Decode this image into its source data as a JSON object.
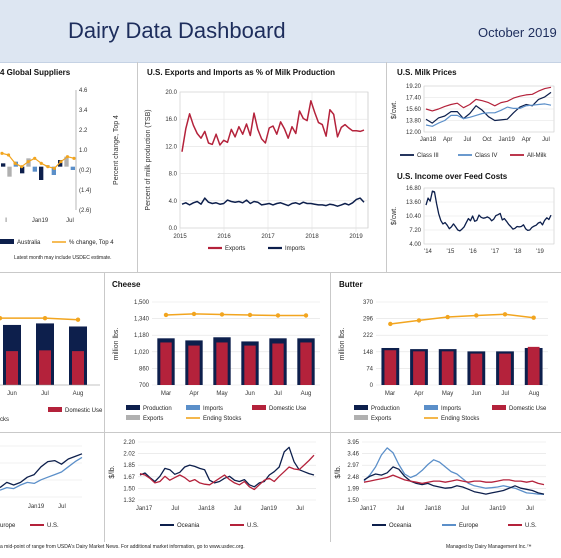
{
  "header": {
    "title": "Dairy Data Dashboard",
    "date": "October 2019"
  },
  "footer": {
    "source": "a mid-point of range from USDA's Dairy Market News.  For additional market information, go to www.usdec.org.",
    "managed": "Managed by Dairy Management Inc.™",
    "note": "Latest month may include USDEC estimate."
  },
  "colors": {
    "navy": "#0d1f4c",
    "red": "#b4223b",
    "lightblue": "#5b8fc9",
    "gold": "#f2a51f",
    "grey": "#b0b0b0"
  },
  "chart_data": [
    {
      "id": "global-suppliers",
      "type": "bar",
      "title": "4 Global Suppliers",
      "ylabel": "Percent change, Top 4",
      "yticks_right": [
        "4.6",
        "3.4",
        "2.2",
        "1.0",
        "(0.2)",
        "(1.4)",
        "(2.6)"
      ],
      "xticks": [
        "l",
        "Jan19",
        "Jul"
      ],
      "legend": [
        "Australia",
        "% change, Top 4"
      ],
      "values": [
        0.2,
        -0.6,
        0.3,
        -0.4,
        0.5,
        -0.3,
        -0.8,
        0.1,
        -0.5,
        0.4,
        0.6,
        -0.2
      ],
      "line": [
        0.8,
        0.7,
        0.2,
        0.0,
        0.3,
        0.5,
        0.2,
        0.0,
        -0.1,
        0.3,
        0.6,
        0.5
      ]
    },
    {
      "id": "us-exports-imports",
      "type": "line",
      "title": "U.S. Exports and Imports as % of Milk Production",
      "ylabel": "Percent of milk production (TSB)",
      "ylim": [
        0,
        20
      ],
      "yticks": [
        "20.0",
        "16.0",
        "12.0",
        "8.0",
        "4.0",
        "0.0"
      ],
      "xticks": [
        "2015",
        "2016",
        "2017",
        "2018",
        "2019"
      ],
      "series": [
        {
          "name": "Exports",
          "values": [
            11.2,
            14.6,
            16.8,
            15.1,
            13.9,
            13.2,
            14.2,
            12.5,
            12.3,
            13.8,
            12.2,
            12.9,
            12.6,
            14.5,
            13.4,
            14.9,
            13.8,
            15.3,
            13.6,
            16.9,
            14.5,
            13.1,
            12.5,
            14.7,
            15.0,
            13.8,
            15.6,
            14.6,
            13.2,
            14.9,
            13.9,
            17.2,
            16.1,
            15.8,
            18.7,
            17.0,
            15.5,
            15.2,
            13.5,
            17.4,
            16.7,
            13.4,
            14.8,
            15.2,
            14.7,
            14.3,
            14.3,
            14.2,
            14.4
          ]
        },
        {
          "name": "Imports",
          "values": [
            3.5,
            3.7,
            3.4,
            3.7,
            3.9,
            3.5,
            4.4,
            3.8,
            3.6,
            3.7,
            3.5,
            3.6,
            4.1,
            3.9,
            3.8,
            3.9,
            3.7,
            4.1,
            3.6,
            3.9,
            3.8,
            3.4,
            3.5,
            3.6,
            3.4,
            3.6,
            3.7,
            3.5,
            3.3,
            3.6,
            3.7,
            3.5,
            3.8,
            3.6,
            3.6,
            3.5,
            3.4,
            3.4,
            3.3,
            3.5,
            3.4,
            3.2,
            3.4,
            3.6,
            3.4,
            3.7,
            4.2,
            4.4,
            3.8
          ]
        }
      ]
    },
    {
      "id": "us-milk-prices",
      "type": "line",
      "title": "U.S. Milk Prices",
      "ylabel": "$/cwt.",
      "ylim": [
        12,
        19.2
      ],
      "yticks": [
        "19.20",
        "17.40",
        "15.60",
        "13.80",
        "12.00"
      ],
      "xticks": [
        "Jan18",
        "Apr",
        "Jul",
        "Oct",
        "Jan19",
        "Apr",
        "Jul"
      ],
      "series": [
        {
          "name": "Class III",
          "values": [
            14.0,
            13.4,
            14.2,
            14.5,
            15.2,
            15.2,
            14.1,
            14.9,
            16.1,
            15.4,
            14.4,
            13.8,
            13.9,
            14.0,
            15.0,
            15.9,
            16.3,
            16.1,
            17.1,
            17.5,
            18.2
          ]
        },
        {
          "name": "Class IV",
          "values": [
            13.1,
            12.9,
            13.4,
            13.8,
            14.6,
            14.6,
            14.1,
            14.3,
            14.6,
            14.9,
            15.0,
            15.0,
            15.4,
            15.9,
            15.7,
            15.7,
            16.1,
            16.2,
            16.3,
            16.4,
            16.2
          ]
        },
        {
          "name": "All-Milk",
          "values": [
            15.6,
            15.3,
            15.6,
            16.0,
            16.3,
            16.5,
            15.8,
            16.3,
            17.1,
            16.9,
            16.6,
            16.1,
            16.6,
            16.8,
            17.3,
            17.6,
            17.8,
            17.9,
            18.4,
            18.8,
            19.0
          ]
        }
      ]
    },
    {
      "id": "income-over-feed",
      "type": "line",
      "title": "U.S. Income over Feed Costs",
      "ylabel": "$/cwt.",
      "ylim": [
        4,
        16.8
      ],
      "yticks": [
        "16.80",
        "13.60",
        "10.40",
        "7.20",
        "4.00"
      ],
      "xticks": [
        "'14",
        "'15",
        "'16",
        "'17",
        "'18",
        "'19"
      ],
      "values": [
        12.9,
        14.5,
        13.8,
        16.1,
        15.9,
        13.2,
        10.9,
        9.4,
        8.6,
        8.9,
        8.3,
        7.5,
        7.9,
        8.6,
        7.9,
        7.2,
        7.0,
        7.4,
        7.9,
        8.9,
        9.8,
        9.3,
        10.4,
        9.2,
        9.4,
        10.6,
        10.1,
        9.9,
        10.0,
        10.2,
        9.9,
        9.3,
        9.7,
        10.5,
        10.7,
        11.0,
        9.5,
        9.8,
        9.2,
        8.5,
        8.0,
        7.4,
        7.6,
        8.0,
        7.9,
        8.0,
        8.4,
        7.5,
        7.1,
        7.2,
        7.8,
        8.1,
        8.3,
        8.8,
        9.0,
        8.4,
        9.4,
        10.0,
        9.6,
        10.6
      ]
    },
    {
      "id": "panel-left",
      "type": "bar",
      "xticks": [
        "Jun",
        "Jul",
        "Aug"
      ],
      "legend": [
        "Domestic Use",
        "cks"
      ],
      "bars": [
        {
          "total": 0.78,
          "red": 0.44
        },
        {
          "total": 0.8,
          "red": 0.45
        },
        {
          "total": 0.76,
          "red": 0.44
        }
      ],
      "line": [
        0.92,
        0.92,
        0.9
      ]
    },
    {
      "id": "cheese",
      "type": "bar",
      "title": "Cheese",
      "ylabel": "million lbs.",
      "ylim": [
        700,
        1500
      ],
      "yticks": [
        "1,500",
        "1,340",
        "1,180",
        "1,020",
        "860",
        "700"
      ],
      "xticks": [
        "Mar",
        "Apr",
        "May",
        "Jun",
        "Jul",
        "Aug"
      ],
      "production": [
        1150,
        1130,
        1160,
        1120,
        1150,
        1150
      ],
      "domestic_use": [
        1110,
        1080,
        1110,
        1080,
        1100,
        1110
      ],
      "ending_stocks": [
        1375,
        1385,
        1380,
        1375,
        1370,
        1370
      ],
      "legend": [
        "Production",
        "Imports",
        "Domestic Use",
        "Exports",
        "Ending Stocks"
      ]
    },
    {
      "id": "butter",
      "type": "bar",
      "title": "Butter",
      "ylabel": "million lbs.",
      "ylim": [
        0,
        370
      ],
      "yticks": [
        "370",
        "296",
        "222",
        "148",
        "74",
        "0"
      ],
      "xticks": [
        "Mar",
        "Apr",
        "May",
        "Jun",
        "Jul",
        "Aug"
      ],
      "production": [
        165,
        160,
        160,
        150,
        150,
        165
      ],
      "domestic_use": [
        155,
        150,
        150,
        140,
        140,
        170
      ],
      "ending_stocks": [
        272,
        288,
        303,
        310,
        315,
        300
      ],
      "legend": [
        "Production",
        "Imports",
        "Domestic Use",
        "Exports",
        "Ending Stocks"
      ]
    },
    {
      "id": "prices-left",
      "type": "line",
      "xticks": [
        "Jan19",
        "Jul"
      ],
      "legend": [
        "urope",
        "U.S."
      ],
      "series": [
        {
          "name": "urope",
          "values": [
            0.2,
            0.3,
            0.25,
            0.3,
            0.4,
            0.45,
            0.6,
            0.7,
            0.72,
            0.65,
            0.75,
            0.8,
            0.85
          ]
        },
        {
          "name": "U.S.",
          "values": [
            0.15,
            0.2,
            0.18,
            0.25,
            0.3,
            0.28,
            0.35,
            0.4,
            0.45,
            0.5,
            0.6,
            0.7,
            0.78
          ]
        }
      ]
    },
    {
      "id": "prices-middle",
      "type": "line",
      "ylabel": "$/lb.",
      "ylim": [
        1.32,
        2.2
      ],
      "yticks": [
        "2.20",
        "2.02",
        "1.85",
        "1.67",
        "1.50",
        "1.32"
      ],
      "xticks": [
        "Jan17",
        "Jul",
        "Jan18",
        "Jul",
        "Jan19",
        "Jul"
      ],
      "series": [
        {
          "name": "Oceania",
          "values": [
            1.7,
            1.73,
            1.66,
            1.6,
            1.68,
            1.8,
            1.78,
            1.71,
            1.74,
            1.82,
            1.85,
            1.83,
            1.8,
            1.78,
            1.62,
            1.58,
            1.6,
            1.65,
            1.68,
            1.62,
            1.6,
            1.63,
            1.55,
            1.52,
            1.58,
            1.6,
            1.7,
            1.75,
            1.82,
            2.05,
            2.12,
            1.9,
            1.78,
            1.75,
            1.72,
            1.7
          ]
        },
        {
          "name": "U.S.",
          "values": [
            1.72,
            1.7,
            1.65,
            1.58,
            1.6,
            1.68,
            1.62,
            1.66,
            1.7,
            1.66,
            1.6,
            1.63,
            1.58,
            1.56,
            1.55,
            1.6,
            1.65,
            1.7,
            1.63,
            1.58,
            1.55,
            1.6,
            1.52,
            1.48,
            1.55,
            1.62,
            1.65,
            1.6,
            1.68,
            1.75,
            1.82,
            1.79,
            1.78,
            1.85,
            1.92,
            2.0
          ]
        }
      ]
    },
    {
      "id": "prices-right",
      "type": "line",
      "ylabel": "$/lb.",
      "ylim": [
        1.5,
        3.95
      ],
      "yticks": [
        "3.95",
        "3.46",
        "2.97",
        "2.48",
        "1.99",
        "1.50"
      ],
      "xticks": [
        "Jan17",
        "Jul",
        "Jan18",
        "Jul",
        "Jan19",
        "Jul"
      ],
      "series": [
        {
          "name": "Oceania",
          "values": [
            2.35,
            2.5,
            2.6,
            2.55,
            2.65,
            2.9,
            2.8,
            2.5,
            2.3,
            2.2,
            2.15,
            2.2,
            2.1,
            2.05,
            2.0,
            2.02,
            2.1,
            2.05,
            1.95,
            1.85,
            1.8,
            1.75,
            1.8,
            1.85,
            1.9,
            2.0,
            2.1,
            2.0,
            1.95,
            1.9,
            1.8,
            1.75
          ]
        },
        {
          "name": "Europe",
          "values": [
            2.3,
            2.55,
            2.9,
            3.4,
            3.7,
            3.5,
            3.0,
            2.6,
            2.45,
            2.55,
            2.75,
            3.0,
            3.2,
            3.1,
            2.9,
            2.7,
            2.6,
            2.4,
            2.2,
            2.1,
            2.05,
            2.0,
            2.02,
            2.05,
            2.1,
            2.05,
            2.0,
            1.9,
            1.8,
            1.78,
            1.75,
            1.74
          ]
        },
        {
          "name": "U.S.",
          "values": [
            2.25,
            2.3,
            2.35,
            2.4,
            2.45,
            2.55,
            2.45,
            2.35,
            2.3,
            2.25,
            2.2,
            2.25,
            2.3,
            2.3,
            2.25,
            2.3,
            2.35,
            2.3,
            2.25,
            2.3,
            2.3,
            2.25,
            2.25,
            2.3,
            2.35,
            2.35,
            2.3,
            2.3,
            2.25,
            2.3,
            2.2,
            2.15
          ]
        }
      ]
    }
  ]
}
